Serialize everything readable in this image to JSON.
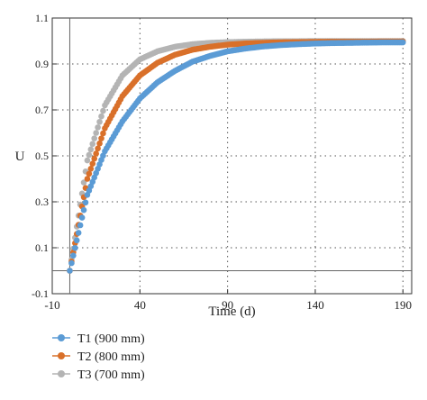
{
  "chart_data": {
    "type": "scatter",
    "title": "",
    "xlabel": "Time (d)",
    "ylabel": "U",
    "xlim": [
      -10,
      195
    ],
    "ylim": [
      -0.1,
      1.1
    ],
    "x_ticks": [
      -10,
      40,
      90,
      140,
      190
    ],
    "y_ticks": [
      -0.1,
      0.1,
      0.3,
      0.5,
      0.7,
      0.9,
      1.1
    ],
    "grid": true,
    "legend_position": "below",
    "series": [
      {
        "name": "T1 (900 mm)",
        "color": "#5b9bd5",
        "x": [
          0,
          10,
          20,
          30,
          40,
          50,
          60,
          70,
          80,
          90,
          100,
          110,
          120,
          130,
          140,
          150,
          160,
          170,
          180,
          190
        ],
        "y": [
          0.0,
          0.33,
          0.52,
          0.65,
          0.75,
          0.82,
          0.87,
          0.91,
          0.935,
          0.955,
          0.967,
          0.976,
          0.982,
          0.986,
          0.989,
          0.991,
          0.992,
          0.993,
          0.994,
          0.994
        ]
      },
      {
        "name": "T2 (800 mm)",
        "color": "#d9702a",
        "x": [
          0,
          10,
          20,
          30,
          40,
          50,
          60,
          70,
          80,
          90,
          100,
          110,
          120,
          130,
          140,
          150,
          160,
          170,
          180,
          190
        ],
        "y": [
          0.0,
          0.4,
          0.62,
          0.76,
          0.85,
          0.905,
          0.94,
          0.962,
          0.975,
          0.984,
          0.989,
          0.992,
          0.994,
          0.995,
          0.996,
          0.997,
          0.997,
          0.997,
          0.998,
          0.998
        ]
      },
      {
        "name": "T3 (700 mm)",
        "color": "#b4b4b4",
        "x": [
          0,
          10,
          20,
          30,
          40,
          50,
          60,
          70,
          80,
          90,
          100,
          110,
          120,
          130,
          140,
          150,
          160,
          170,
          180,
          190
        ],
        "y": [
          0.0,
          0.48,
          0.72,
          0.85,
          0.92,
          0.955,
          0.975,
          0.986,
          0.992,
          0.995,
          0.997,
          0.998,
          0.999,
          0.999,
          1.0,
          1.0,
          1.0,
          1.0,
          1.0,
          1.0
        ]
      }
    ]
  }
}
